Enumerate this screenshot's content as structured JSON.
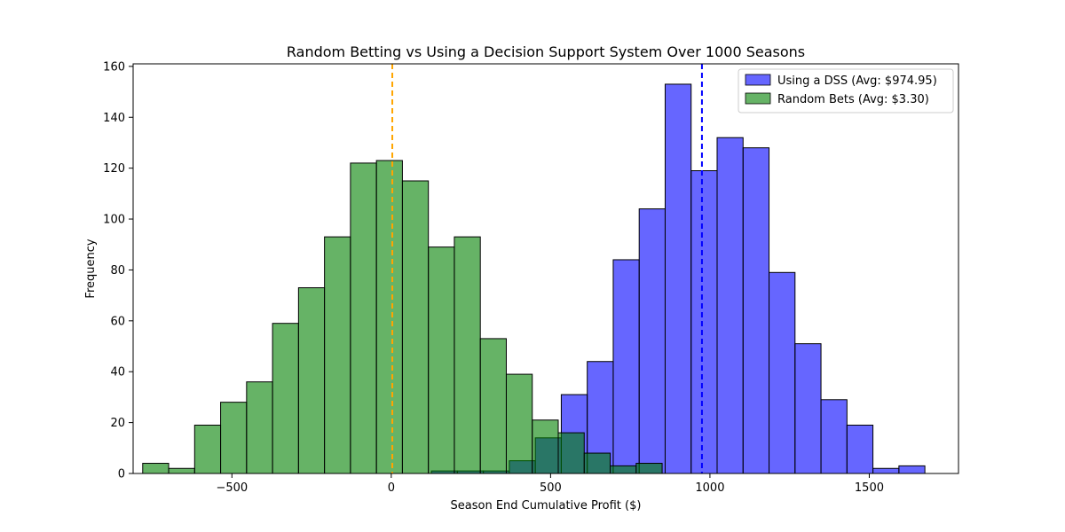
{
  "chart_data": {
    "type": "bar",
    "title": "Random Betting vs Using a Decision Support System Over 1000 Seasons",
    "xlabel": "Season End Cumulative Profit ($)",
    "ylabel": "Frequency",
    "xlim": [
      -810,
      1780
    ],
    "ylim": [
      0,
      161
    ],
    "xticks": [
      -500,
      0,
      500,
      1000,
      1500
    ],
    "xtick_labels": [
      "−500",
      "0",
      "500",
      "1000",
      "1500"
    ],
    "yticks": [
      0,
      20,
      40,
      60,
      80,
      100,
      120,
      140,
      160
    ],
    "ytick_labels": [
      "0",
      "20",
      "40",
      "60",
      "80",
      "100",
      "120",
      "140",
      "160"
    ],
    "bin_width": 81.5,
    "grid": false,
    "legend_position": "top-right",
    "series": [
      {
        "name": "Using a DSS (Avg: $974.95)",
        "color": "#0000ff",
        "alpha": 0.6,
        "bin_start": 126,
        "counts": [
          1,
          1,
          1,
          5,
          14,
          31,
          44,
          84,
          104,
          153,
          119,
          132,
          128,
          79,
          51,
          29,
          19,
          2,
          3
        ],
        "mean": 974.95,
        "mean_line_color": "#0000ff"
      },
      {
        "name": "Random Bets (Avg: $3.30)",
        "color": "#008000",
        "alpha": 0.6,
        "bin_start": -780,
        "counts": [
          4,
          2,
          19,
          28,
          36,
          59,
          73,
          93,
          122,
          123,
          115,
          89,
          93,
          53,
          39,
          21,
          16,
          8,
          3,
          4
        ],
        "mean": 3.3,
        "mean_line_color": "#ffa500"
      }
    ]
  }
}
